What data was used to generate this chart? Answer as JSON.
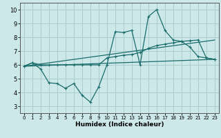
{
  "xlabel": "Humidex (Indice chaleur)",
  "x_ticks": [
    0,
    1,
    2,
    3,
    4,
    5,
    6,
    7,
    8,
    9,
    10,
    11,
    12,
    13,
    14,
    15,
    16,
    17,
    18,
    19,
    20,
    21,
    22,
    23
  ],
  "y_ticks": [
    3,
    4,
    5,
    6,
    7,
    8,
    9,
    10
  ],
  "xlim": [
    -0.5,
    23.5
  ],
  "ylim": [
    2.5,
    10.5
  ],
  "bg_color": "#cce8e8",
  "grid_color": "#aacccc",
  "line_color": "#1a6b6b",
  "line1_x": [
    0,
    1,
    2,
    3,
    4,
    5,
    6,
    7,
    8,
    9,
    10,
    11,
    12,
    13,
    14,
    15,
    16,
    17,
    18,
    19,
    20,
    21,
    22,
    23
  ],
  "line1_y": [
    5.9,
    6.15,
    5.7,
    4.7,
    4.65,
    4.3,
    4.65,
    3.8,
    3.3,
    4.4,
    6.0,
    8.4,
    8.35,
    8.5,
    6.0,
    9.5,
    10.0,
    8.5,
    7.8,
    7.7,
    7.3,
    6.6,
    6.5,
    6.4
  ],
  "line2_x": [
    0,
    1,
    2,
    3,
    4,
    5,
    6,
    7,
    8,
    9,
    10,
    11,
    12,
    13,
    14,
    15,
    16,
    17,
    18,
    19,
    20,
    21,
    22,
    23
  ],
  "line2_y": [
    5.9,
    6.15,
    6.0,
    6.0,
    6.0,
    6.0,
    6.0,
    6.0,
    6.0,
    6.0,
    6.5,
    6.6,
    6.7,
    6.75,
    6.9,
    7.2,
    7.4,
    7.5,
    7.6,
    7.7,
    7.75,
    7.8,
    6.5,
    6.4
  ],
  "line3_x": [
    0,
    23
  ],
  "line3_y": [
    5.9,
    6.4
  ],
  "line4_x": [
    0,
    23
  ],
  "line4_y": [
    5.9,
    7.8
  ]
}
